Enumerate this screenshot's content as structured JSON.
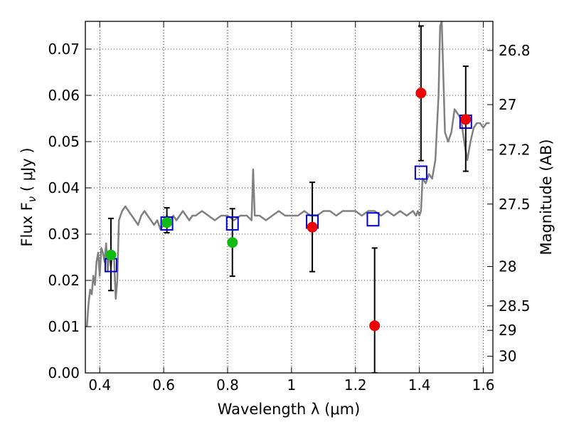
{
  "chart_data": {
    "type": "scatter",
    "title": "",
    "xlabel": "Wavelength  λ (μm)",
    "ylabel": "Flux  F",
    "ylabel_sub": "ν",
    "ylabel_unit": "  (  μJy  )",
    "ylabel_right": "Magnitude (AB)",
    "xlim": [
      0.355,
      1.63
    ],
    "ylim": [
      0.0,
      0.076
    ],
    "grid": true,
    "grid_style": "dotted",
    "x_ticks": [
      0.4,
      0.6,
      0.8,
      1.0,
      1.2,
      1.4,
      1.6
    ],
    "x_tick_labels": [
      "0.4",
      "0.6",
      "0.8",
      "1",
      "1.2",
      "1.4",
      "1.6"
    ],
    "y_ticks": [
      0.0,
      0.01,
      0.02,
      0.03,
      0.04,
      0.05,
      0.06,
      0.07
    ],
    "y_tick_labels": [
      "0.00",
      "0.01",
      "0.02",
      "0.03",
      "0.04",
      "0.05",
      "0.06",
      "0.07"
    ],
    "right_ticks": [
      {
        "label": "26.8",
        "flux": 0.0697
      },
      {
        "label": "27",
        "flux": 0.058
      },
      {
        "label": "27.2",
        "flux": 0.0482
      },
      {
        "label": "27.5",
        "flux": 0.0365
      },
      {
        "label": "28",
        "flux": 0.023
      },
      {
        "label": "28.5",
        "flux": 0.0145
      },
      {
        "label": "29",
        "flux": 0.0092
      },
      {
        "label": "30",
        "flux": 0.0036
      }
    ],
    "colors": {
      "spectrum": "#808080",
      "model": "#0000cc",
      "green": "#11bb11",
      "red": "#ee0000",
      "errorbar": "#000000"
    },
    "series": [
      {
        "kind": "spectrum",
        "x": [
          0.36,
          0.365,
          0.37,
          0.375,
          0.38,
          0.385,
          0.39,
          0.395,
          0.4,
          0.405,
          0.41,
          0.415,
          0.42,
          0.425,
          0.43,
          0.435,
          0.44,
          0.445,
          0.45,
          0.455,
          0.46,
          0.465,
          0.47,
          0.48,
          0.49,
          0.5,
          0.51,
          0.52,
          0.53,
          0.54,
          0.55,
          0.56,
          0.57,
          0.58,
          0.59,
          0.6,
          0.61,
          0.62,
          0.63,
          0.64,
          0.65,
          0.66,
          0.67,
          0.68,
          0.69,
          0.7,
          0.72,
          0.74,
          0.76,
          0.78,
          0.8,
          0.82,
          0.84,
          0.86,
          0.875,
          0.88,
          0.885,
          0.89,
          0.9,
          0.92,
          0.94,
          0.96,
          0.98,
          1.0,
          1.02,
          1.04,
          1.06,
          1.08,
          1.1,
          1.12,
          1.14,
          1.16,
          1.18,
          1.2,
          1.22,
          1.24,
          1.26,
          1.28,
          1.3,
          1.32,
          1.34,
          1.36,
          1.38,
          1.39,
          1.395,
          1.4,
          1.405,
          1.41,
          1.42,
          1.43,
          1.44,
          1.45,
          1.46,
          1.465,
          1.47,
          1.48,
          1.49,
          1.5,
          1.51,
          1.52,
          1.53,
          1.54,
          1.55,
          1.56,
          1.57,
          1.58,
          1.59,
          1.6,
          1.61,
          1.62
        ],
        "y": [
          0.01,
          0.015,
          0.018,
          0.017,
          0.021,
          0.019,
          0.024,
          0.026,
          0.021,
          0.027,
          0.026,
          0.024,
          0.028,
          0.022,
          0.026,
          0.023,
          0.026,
          0.025,
          0.016,
          0.02,
          0.033,
          0.034,
          0.035,
          0.036,
          0.035,
          0.034,
          0.033,
          0.032,
          0.034,
          0.035,
          0.034,
          0.033,
          0.032,
          0.033,
          0.031,
          0.032,
          0.034,
          0.033,
          0.034,
          0.033,
          0.034,
          0.035,
          0.034,
          0.033,
          0.034,
          0.034,
          0.035,
          0.034,
          0.033,
          0.034,
          0.034,
          0.033,
          0.034,
          0.034,
          0.033,
          0.044,
          0.034,
          0.034,
          0.034,
          0.033,
          0.034,
          0.035,
          0.034,
          0.034,
          0.034,
          0.035,
          0.034,
          0.034,
          0.035,
          0.035,
          0.034,
          0.035,
          0.035,
          0.035,
          0.034,
          0.035,
          0.035,
          0.034,
          0.035,
          0.034,
          0.035,
          0.034,
          0.035,
          0.034,
          0.035,
          0.034,
          0.035,
          0.042,
          0.041,
          0.043,
          0.042,
          0.046,
          0.06,
          0.075,
          0.076,
          0.052,
          0.05,
          0.052,
          0.057,
          0.056,
          0.055,
          0.05,
          0.046,
          0.05,
          0.053,
          0.054,
          0.054,
          0.053,
          0.054,
          0.054
        ]
      },
      {
        "kind": "model",
        "marker": "square",
        "x": [
          0.435,
          0.61,
          0.815,
          1.065,
          1.255,
          1.405,
          1.545
        ],
        "y": [
          0.0233,
          0.0323,
          0.0323,
          0.0327,
          0.0332,
          0.0433,
          0.0543
        ]
      },
      {
        "kind": "detection",
        "marker": "circle",
        "color_key": "green",
        "x": [
          0.435,
          0.61,
          0.815
        ],
        "y": [
          0.0255,
          0.0325,
          0.0282
        ],
        "yerr_low": [
          0.0178,
          0.0303,
          0.0209
        ],
        "yerr_high": [
          0.0334,
          0.0357,
          0.0355
        ]
      },
      {
        "kind": "detection",
        "marker": "circle",
        "color_key": "red",
        "x": [
          1.065,
          1.26,
          1.405,
          1.545
        ],
        "y": [
          0.0315,
          0.0102,
          0.0605,
          0.0548
        ],
        "yerr_low": [
          0.0219,
          0.0,
          0.0459,
          0.0436
        ],
        "yerr_high": [
          0.0412,
          0.027,
          0.075,
          0.0663
        ]
      }
    ]
  }
}
